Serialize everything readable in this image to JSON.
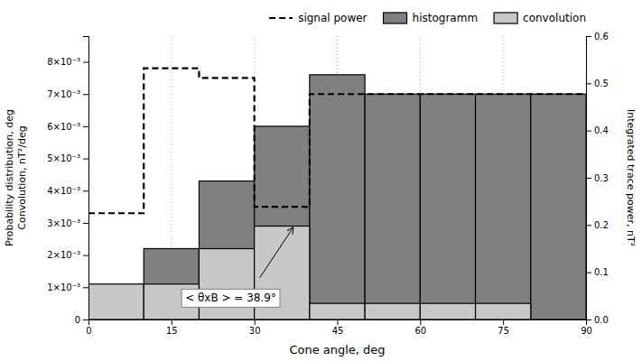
{
  "chart_data": {
    "type": "bar",
    "xlabel": "Cone angle, deg",
    "ylabel": "Probability distribution, deg\nConvolution, nT²/deg",
    "y2label": "Integrated trace power, nT²",
    "xlim": [
      0,
      90
    ],
    "ylim": [
      0,
      0.0088
    ],
    "y2lim": [
      0,
      0.6
    ],
    "xticks": [
      0,
      15,
      30,
      45,
      60,
      75,
      90
    ],
    "yticks": [
      0,
      {
        "value": 0.001,
        "label": "1×10⁻³"
      },
      {
        "value": 0.002,
        "label": "2×10⁻³"
      },
      {
        "value": 0.003,
        "label": "3×10⁻³"
      },
      {
        "value": 0.004,
        "label": "4×10⁻³"
      },
      {
        "value": 0.005,
        "label": "5×10⁻³"
      },
      {
        "value": 0.006,
        "label": "6×10⁻³"
      },
      {
        "value": 0.007,
        "label": "7×10⁻³"
      },
      {
        "value": 0.008,
        "label": "8×10⁻³"
      }
    ],
    "y2ticks": [
      {
        "value": 0,
        "label": "0.0"
      },
      0.1,
      0.2,
      0.3,
      0.4,
      0.5,
      0.6
    ],
    "bins": [
      0,
      10,
      20,
      30,
      40,
      50,
      60,
      70,
      80,
      90
    ],
    "series": [
      {
        "name": "signal power",
        "type": "line",
        "line_style": "dashed",
        "color": "#000000",
        "x": [
          0,
          10,
          10,
          20,
          20,
          30,
          30,
          40,
          40,
          90
        ],
        "values": [
          0.0033,
          0.0033,
          0.0078,
          0.0078,
          0.0075,
          0.0075,
          0.0035,
          0.0035,
          0.007,
          0.007
        ]
      },
      {
        "name": "histogramm",
        "type": "bar",
        "color": "#808080",
        "values": [
          0.0008,
          0.0022,
          0.0043,
          0.006,
          0.0076,
          0.007,
          0.007,
          0.007,
          0.007
        ]
      },
      {
        "name": "convolution",
        "type": "bar",
        "color": "#c8c8c8",
        "values": [
          0.0011,
          0.0011,
          0.0022,
          0.0029,
          0.0005,
          0.0005,
          0.0005,
          0.0005,
          0
        ]
      }
    ],
    "grid": "x",
    "legend": "upper right",
    "annotations": [
      {
        "arrow": {
          "x": [
            31,
            37
          ],
          "y": [
            0.0013,
            0.00285
          ]
        }
      },
      {
        "text": "< θxB > = 38.9°",
        "x": 17.5,
        "y": 0.00055
      }
    ]
  }
}
